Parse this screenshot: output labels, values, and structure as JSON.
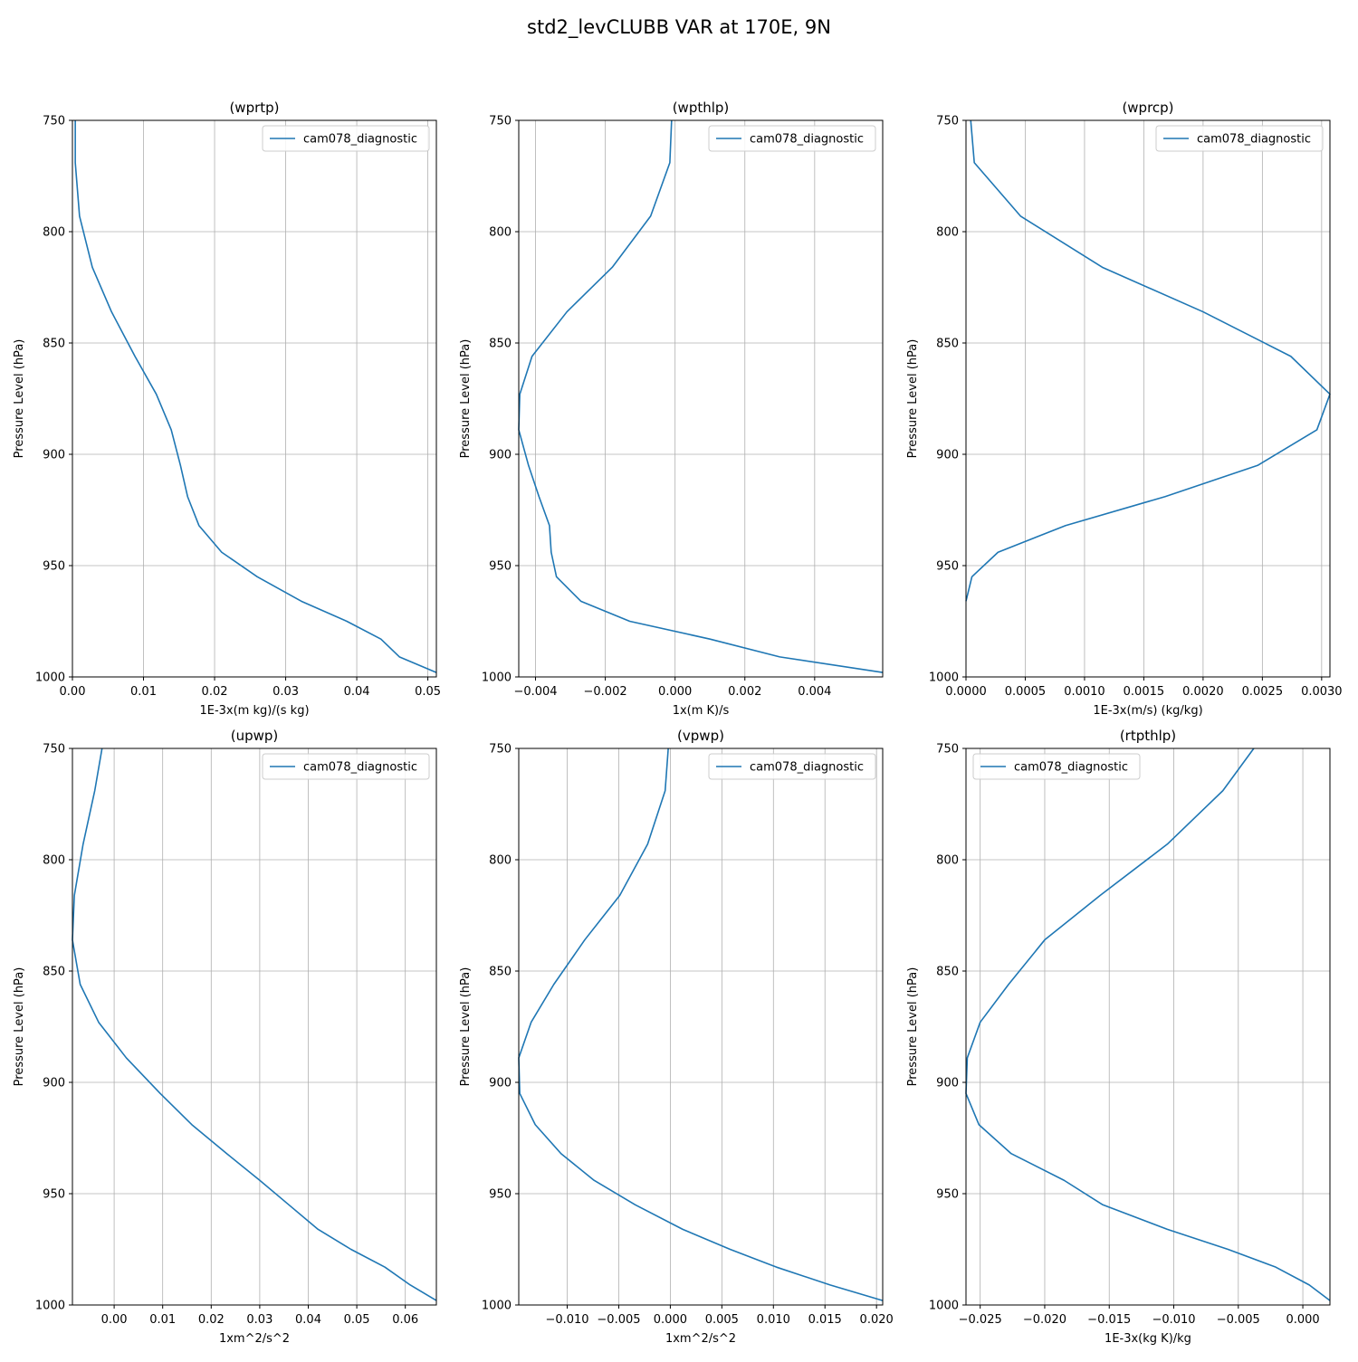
{
  "figure": {
    "title": "std2_levCLUBB VAR at 170E, 9N",
    "series_color": "#1f77b4"
  },
  "chart_data": [
    {
      "type": "line",
      "title": "(wprtp)",
      "xlabel": "1E-3x(m kg)/(s kg)",
      "ylabel": "Pressure Level (hPa)",
      "xlim": [
        0,
        0.0512
      ],
      "ylim": [
        1000,
        750
      ],
      "yaxis_inverted": true,
      "grid": true,
      "legend_position": "upper right",
      "xticks": [
        0,
        0.01,
        0.02,
        0.03,
        0.04,
        0.05
      ],
      "xtick_labels": [
        "0.00",
        "0.01",
        "0.02",
        "0.03",
        "0.04",
        "0.05"
      ],
      "yticks": [
        750,
        800,
        850,
        900,
        950,
        1000
      ],
      "ytick_labels": [
        "750",
        "800",
        "850",
        "900",
        "950",
        "1000"
      ],
      "series": [
        {
          "name": "cam078_diagnostic",
          "points": [
            [
              0.0004,
              750
            ],
            [
              0.0004,
              769
            ],
            [
              0.001,
              793
            ],
            [
              0.0028,
              816
            ],
            [
              0.0055,
              836
            ],
            [
              0.0088,
              856
            ],
            [
              0.0118,
              873
            ],
            [
              0.0139,
              889
            ],
            [
              0.0152,
              905
            ],
            [
              0.0162,
              919
            ],
            [
              0.0178,
              932
            ],
            [
              0.021,
              944
            ],
            [
              0.026,
              955
            ],
            [
              0.0322,
              966
            ],
            [
              0.0386,
              975
            ],
            [
              0.0434,
              983
            ],
            [
              0.046,
              991
            ],
            [
              0.0512,
              998
            ]
          ]
        }
      ]
    },
    {
      "type": "line",
      "title": "(wpthlp)",
      "xlabel": "1x(m K)/s",
      "ylabel": "Pressure Level (hPa)",
      "xlim": [
        -0.00448,
        0.00595
      ],
      "ylim": [
        1000,
        750
      ],
      "yaxis_inverted": true,
      "grid": true,
      "legend_position": "upper right",
      "xticks": [
        -0.004,
        -0.002,
        0.0,
        0.002,
        0.004
      ],
      "xtick_labels": [
        "−0.004",
        "−0.002",
        "0.000",
        "0.002",
        "0.004"
      ],
      "yticks": [
        750,
        800,
        850,
        900,
        950,
        1000
      ],
      "ytick_labels": [
        "750",
        "800",
        "850",
        "900",
        "950",
        "1000"
      ],
      "series": [
        {
          "name": "cam078_diagnostic",
          "points": [
            [
              -0.0001,
              750
            ],
            [
              -0.00015,
              769
            ],
            [
              -0.0007,
              793
            ],
            [
              -0.0018,
              816
            ],
            [
              -0.0031,
              836
            ],
            [
              -0.0041,
              856
            ],
            [
              -0.00445,
              873
            ],
            [
              -0.00448,
              889
            ],
            [
              -0.0042,
              905
            ],
            [
              -0.0039,
              919
            ],
            [
              -0.0036,
              932
            ],
            [
              -0.00355,
              944
            ],
            [
              -0.0034,
              955
            ],
            [
              -0.0027,
              966
            ],
            [
              -0.0013,
              975
            ],
            [
              0.001,
              983
            ],
            [
              0.003,
              991
            ],
            [
              0.00595,
              998
            ]
          ]
        }
      ]
    },
    {
      "type": "line",
      "title": "(wprcp)",
      "xlabel": "1E-3x(m/s) (kg/kg)",
      "ylabel": "Pressure Level (hPa)",
      "xlim": [
        0,
        0.00307
      ],
      "ylim": [
        1000,
        750
      ],
      "yaxis_inverted": true,
      "grid": true,
      "legend_position": "upper right",
      "xticks": [
        0,
        0.0005,
        0.001,
        0.0015,
        0.002,
        0.0025,
        0.003
      ],
      "xtick_labels": [
        "0.0000",
        "0.0005",
        "0.0010",
        "0.0015",
        "0.0020",
        "0.0025",
        "0.0030"
      ],
      "yticks": [
        750,
        800,
        850,
        900,
        950,
        1000
      ],
      "ytick_labels": [
        "750",
        "800",
        "850",
        "900",
        "950",
        "1000"
      ],
      "series": [
        {
          "name": "cam078_diagnostic",
          "points": [
            [
              4e-05,
              750
            ],
            [
              7e-05,
              769
            ],
            [
              0.00046,
              793
            ],
            [
              0.00115,
              816
            ],
            [
              0.002,
              836
            ],
            [
              0.00274,
              856
            ],
            [
              0.00307,
              873
            ],
            [
              0.00296,
              889
            ],
            [
              0.00246,
              905
            ],
            [
              0.00168,
              919
            ],
            [
              0.00084,
              932
            ],
            [
              0.00027,
              944
            ],
            [
              5e-05,
              955
            ],
            [
              0.0,
              966
            ]
          ]
        }
      ]
    },
    {
      "type": "line",
      "title": "(upwp)",
      "xlabel": "1xm^2/s^2",
      "ylabel": "Pressure Level (hPa)",
      "xlim": [
        -0.0086,
        0.0664
      ],
      "ylim": [
        1000,
        750
      ],
      "yaxis_inverted": true,
      "grid": true,
      "legend_position": "upper right",
      "xticks": [
        0.0,
        0.01,
        0.02,
        0.03,
        0.04,
        0.05,
        0.06
      ],
      "xtick_labels": [
        "0.00",
        "0.01",
        "0.02",
        "0.03",
        "0.04",
        "0.05",
        "0.06"
      ],
      "yticks": [
        750,
        800,
        850,
        900,
        950,
        1000
      ],
      "ytick_labels": [
        "750",
        "800",
        "850",
        "900",
        "950",
        "1000"
      ],
      "series": [
        {
          "name": "cam078_diagnostic",
          "points": [
            [
              -0.0025,
              750
            ],
            [
              -0.004,
              769
            ],
            [
              -0.0064,
              793
            ],
            [
              -0.0082,
              816
            ],
            [
              -0.0086,
              836
            ],
            [
              -0.007,
              856
            ],
            [
              -0.0032,
              873
            ],
            [
              0.0025,
              889
            ],
            [
              0.0095,
              905
            ],
            [
              0.016,
              919
            ],
            [
              0.0232,
              932
            ],
            [
              0.03,
              944
            ],
            [
              0.036,
              955
            ],
            [
              0.042,
              966
            ],
            [
              0.0488,
              975
            ],
            [
              0.0558,
              983
            ],
            [
              0.061,
              991
            ],
            [
              0.0664,
              998
            ]
          ]
        }
      ]
    },
    {
      "type": "line",
      "title": "(vpwp)",
      "xlabel": "1xm^2/s^2",
      "ylabel": "Pressure Level (hPa)",
      "xlim": [
        -0.0147,
        0.0206
      ],
      "ylim": [
        1000,
        750
      ],
      "yaxis_inverted": true,
      "grid": true,
      "legend_position": "upper right",
      "xticks": [
        -0.01,
        -0.005,
        0.0,
        0.005,
        0.01,
        0.015,
        0.02
      ],
      "xtick_labels": [
        "−0.010",
        "−0.005",
        "0.000",
        "0.005",
        "0.010",
        "0.015",
        "0.020"
      ],
      "yticks": [
        750,
        800,
        850,
        900,
        950,
        1000
      ],
      "ytick_labels": [
        "750",
        "800",
        "850",
        "900",
        "950",
        "1000"
      ],
      "series": [
        {
          "name": "cam078_diagnostic",
          "points": [
            [
              -0.0002,
              750
            ],
            [
              -0.0005,
              769
            ],
            [
              -0.0022,
              793
            ],
            [
              -0.0049,
              816
            ],
            [
              -0.0083,
              836
            ],
            [
              -0.0113,
              856
            ],
            [
              -0.0135,
              873
            ],
            [
              -0.0147,
              889
            ],
            [
              -0.0146,
              905
            ],
            [
              -0.0131,
              919
            ],
            [
              -0.0106,
              932
            ],
            [
              -0.0074,
              944
            ],
            [
              -0.0034,
              955
            ],
            [
              0.0012,
              966
            ],
            [
              0.0058,
              975
            ],
            [
              0.0103,
              983
            ],
            [
              0.0155,
              991
            ],
            [
              0.0206,
              998
            ]
          ]
        }
      ]
    },
    {
      "type": "line",
      "title": "(rtpthlp)",
      "xlabel": "1E-3x(kg K)/kg",
      "ylabel": "Pressure Level (hPa)",
      "xlim": [
        -0.0261,
        0.0021
      ],
      "ylim": [
        1000,
        750
      ],
      "yaxis_inverted": true,
      "grid": true,
      "legend_position": "upper left",
      "xticks": [
        -0.025,
        -0.02,
        -0.015,
        -0.01,
        -0.005,
        0.0
      ],
      "xtick_labels": [
        "−0.025",
        "−0.020",
        "−0.015",
        "−0.010",
        "−0.005",
        "0.000"
      ],
      "yticks": [
        750,
        800,
        850,
        900,
        950,
        1000
      ],
      "ytick_labels": [
        "750",
        "800",
        "850",
        "900",
        "950",
        "1000"
      ],
      "series": [
        {
          "name": "cam078_diagnostic",
          "points": [
            [
              -0.0038,
              750
            ],
            [
              -0.0062,
              769
            ],
            [
              -0.0105,
              793
            ],
            [
              -0.0157,
              816
            ],
            [
              -0.02,
              836
            ],
            [
              -0.0228,
              856
            ],
            [
              -0.025,
              873
            ],
            [
              -0.026,
              889
            ],
            [
              -0.0261,
              905
            ],
            [
              -0.0251,
              919
            ],
            [
              -0.0226,
              932
            ],
            [
              -0.0185,
              944
            ],
            [
              -0.0155,
              955
            ],
            [
              -0.0105,
              966
            ],
            [
              -0.0058,
              975
            ],
            [
              -0.0021,
              983
            ],
            [
              0.0005,
              991
            ],
            [
              0.0021,
              998
            ]
          ]
        }
      ]
    }
  ]
}
